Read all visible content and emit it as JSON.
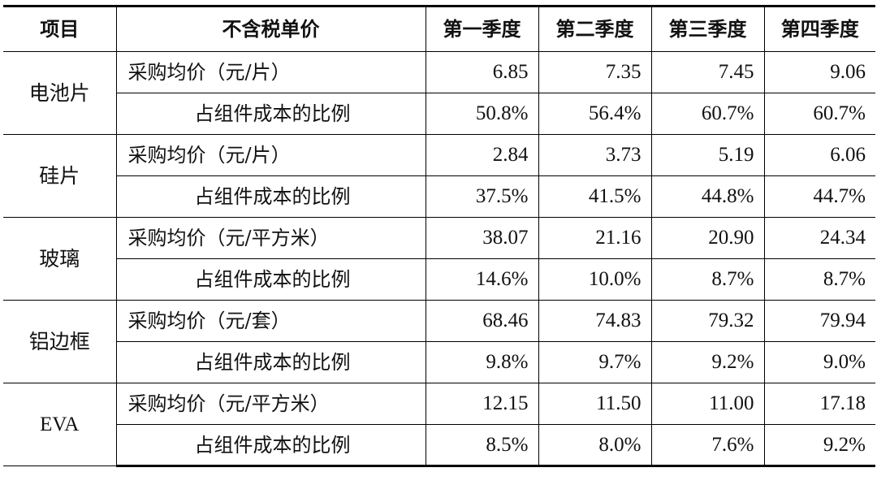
{
  "header": [
    "项目",
    "不含税单价",
    "第一季度",
    "第二季度",
    "第三季度",
    "第四季度"
  ],
  "groups": [
    {
      "name": "电池片",
      "rows": [
        {
          "label": "采购均价（元/片）",
          "values": [
            "6.85",
            "7.35",
            "7.45",
            "9.06"
          ]
        },
        {
          "label": "占组件成本的比例",
          "values": [
            "50.8%",
            "56.4%",
            "60.7%",
            "60.7%"
          ]
        }
      ]
    },
    {
      "name": "硅片",
      "rows": [
        {
          "label": "采购均价（元/片）",
          "values": [
            "2.84",
            "3.73",
            "5.19",
            "6.06"
          ]
        },
        {
          "label": "占组件成本的比例",
          "values": [
            "37.5%",
            "41.5%",
            "44.8%",
            "44.7%"
          ]
        }
      ]
    },
    {
      "name": "玻璃",
      "rows": [
        {
          "label": "采购均价（元/平方米）",
          "values": [
            "38.07",
            "21.16",
            "20.90",
            "24.34"
          ]
        },
        {
          "label": "占组件成本的比例",
          "values": [
            "14.6%",
            "10.0%",
            "8.7%",
            "8.7%"
          ]
        }
      ]
    },
    {
      "name": "铝边框",
      "rows": [
        {
          "label": "采购均价（元/套）",
          "values": [
            "68.46",
            "74.83",
            "79.32",
            "79.94"
          ]
        },
        {
          "label": "占组件成本的比例",
          "values": [
            "9.8%",
            "9.7%",
            "9.2%",
            "9.0%"
          ]
        }
      ]
    },
    {
      "name": "EVA",
      "rows": [
        {
          "label": "采购均价（元/平方米）",
          "values": [
            "12.15",
            "11.50",
            "11.00",
            "17.18"
          ]
        },
        {
          "label": "占组件成本的比例",
          "values": [
            "8.5%",
            "8.0%",
            "7.6%",
            "9.2%"
          ]
        }
      ]
    }
  ]
}
